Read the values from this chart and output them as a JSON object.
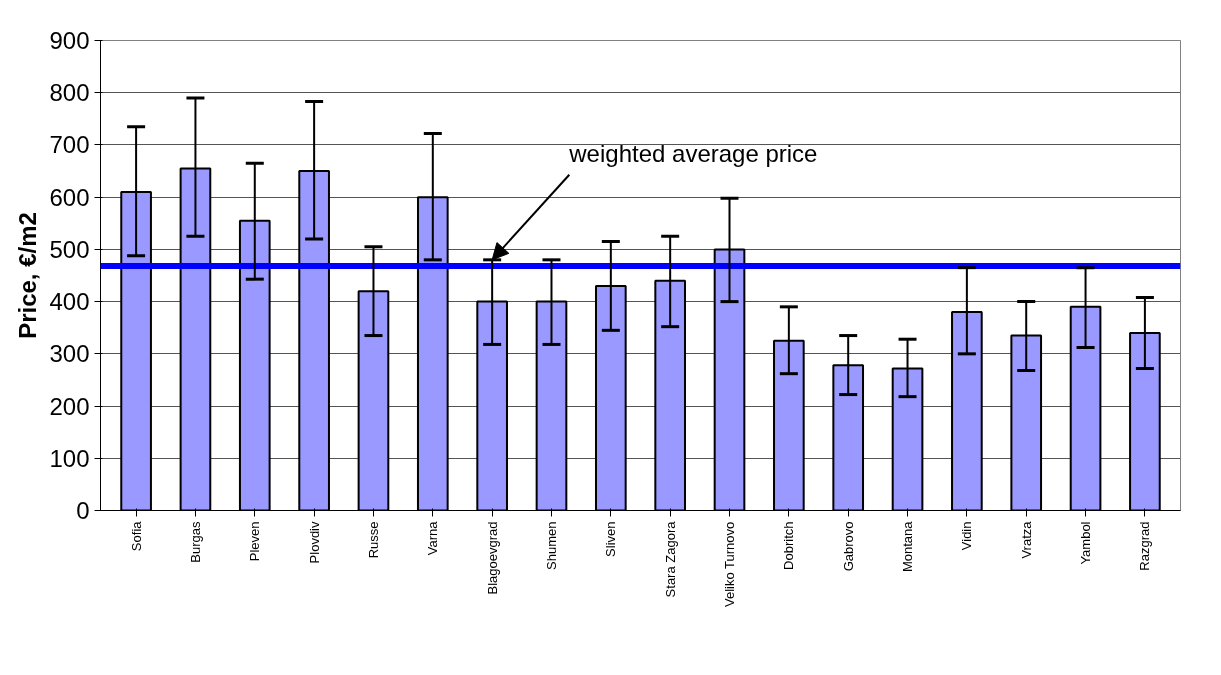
{
  "chart_data": {
    "type": "bar",
    "ylabel": "Price, €/m2",
    "categories": [
      "Sofia",
      "Burgas",
      "Pleven",
      "Plovdiv",
      "Russe",
      "Varna",
      "Blagoevgrad",
      "Shumen",
      "Sliven",
      "Stara Zagora",
      "Veliko Turnovo",
      "Dobritch",
      "Gabrovo",
      "Montana",
      "Vidin",
      "Vratza",
      "Yambol",
      "Razgrad"
    ],
    "values": [
      610,
      655,
      555,
      650,
      420,
      600,
      400,
      400,
      430,
      440,
      500,
      325,
      278,
      272,
      380,
      335,
      390,
      340
    ],
    "errors": [
      [
        488,
        735
      ],
      [
        525,
        790
      ],
      [
        443,
        665
      ],
      [
        520,
        783
      ],
      [
        335,
        505
      ],
      [
        480,
        722
      ],
      [
        318,
        480
      ],
      [
        318,
        480
      ],
      [
        345,
        515
      ],
      [
        352,
        525
      ],
      [
        400,
        598
      ],
      [
        262,
        390
      ],
      [
        222,
        335
      ],
      [
        218,
        328
      ],
      [
        300,
        465
      ],
      [
        268,
        400
      ],
      [
        312,
        465
      ],
      [
        272,
        408
      ]
    ],
    "color": "#9999ff",
    "ylim": [
      0,
      900
    ],
    "yticks": [
      0,
      100,
      200,
      300,
      400,
      500,
      600,
      700,
      800,
      900
    ],
    "grid": "y",
    "ref_lines": [
      {
        "axis": "y",
        "value": 468,
        "color": "#0000ff"
      }
    ],
    "annotations": [
      {
        "text": "weighted average price",
        "x": "Blagoevgrad",
        "y": 480
      }
    ]
  }
}
